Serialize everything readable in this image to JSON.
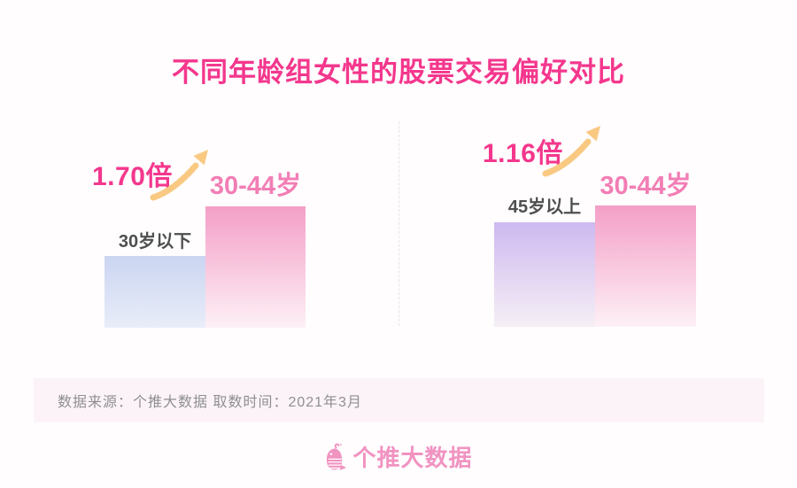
{
  "title": "不同年龄组女性的股票交易偏好对比",
  "panels": [
    {
      "multiplier_label": "1.70倍",
      "bars": [
        {
          "label": "30岁以下",
          "color_top": "#CBD5F1",
          "color_bottom": "#E9EDF9"
        },
        {
          "label": "30-44岁",
          "color_top": "#F49FC7",
          "color_bottom": "#FDF0F6"
        }
      ]
    },
    {
      "multiplier_label": "1.16倍",
      "bars": [
        {
          "label": "45岁以上",
          "color_top": "#CDB9F0",
          "color_bottom": "#F6EFF5"
        },
        {
          "label": "30-44岁",
          "color_top": "#F49FC7",
          "color_bottom": "#FDF0F6"
        }
      ]
    }
  ],
  "source_bar": {
    "text": "数据来源：个推大数据  取数时间：2021年3月"
  },
  "footer": {
    "brand_name": "个推大数据",
    "icon": "whale-icon"
  },
  "colors": {
    "title_pink": "#F4378D",
    "label_pink": "#F27EB5",
    "label_dark": "#4F4F4F",
    "arrow_orange": "#F9C982",
    "strip_background": "#FCF3F8",
    "strip_text": "#8F8F93",
    "brand_pink": "#F193C1",
    "page_background": "#FFFDFE",
    "divider": "#E9E4E7"
  },
  "chart_data": {
    "type": "bar",
    "title": "不同年龄组女性的股票交易偏好对比",
    "subtitle": "",
    "xlabel": "",
    "ylabel": "",
    "legend": [],
    "grid": false,
    "groups": [
      {
        "comparison": "30-44岁 vs 30岁以下",
        "multiplier_text": "1.70倍",
        "multiplier": 1.7,
        "categories": [
          "30岁以下",
          "30-44岁"
        ],
        "relative_values": [
          1,
          1.7
        ]
      },
      {
        "comparison": "30-44岁 vs 45岁以上",
        "multiplier_text": "1.16倍",
        "multiplier": 1.16,
        "categories": [
          "45岁以上",
          "30-44岁"
        ],
        "relative_values": [
          1,
          1.16
        ]
      }
    ],
    "source": "数据来源：个推大数据",
    "data_time": "取数时间：2021年3月"
  }
}
